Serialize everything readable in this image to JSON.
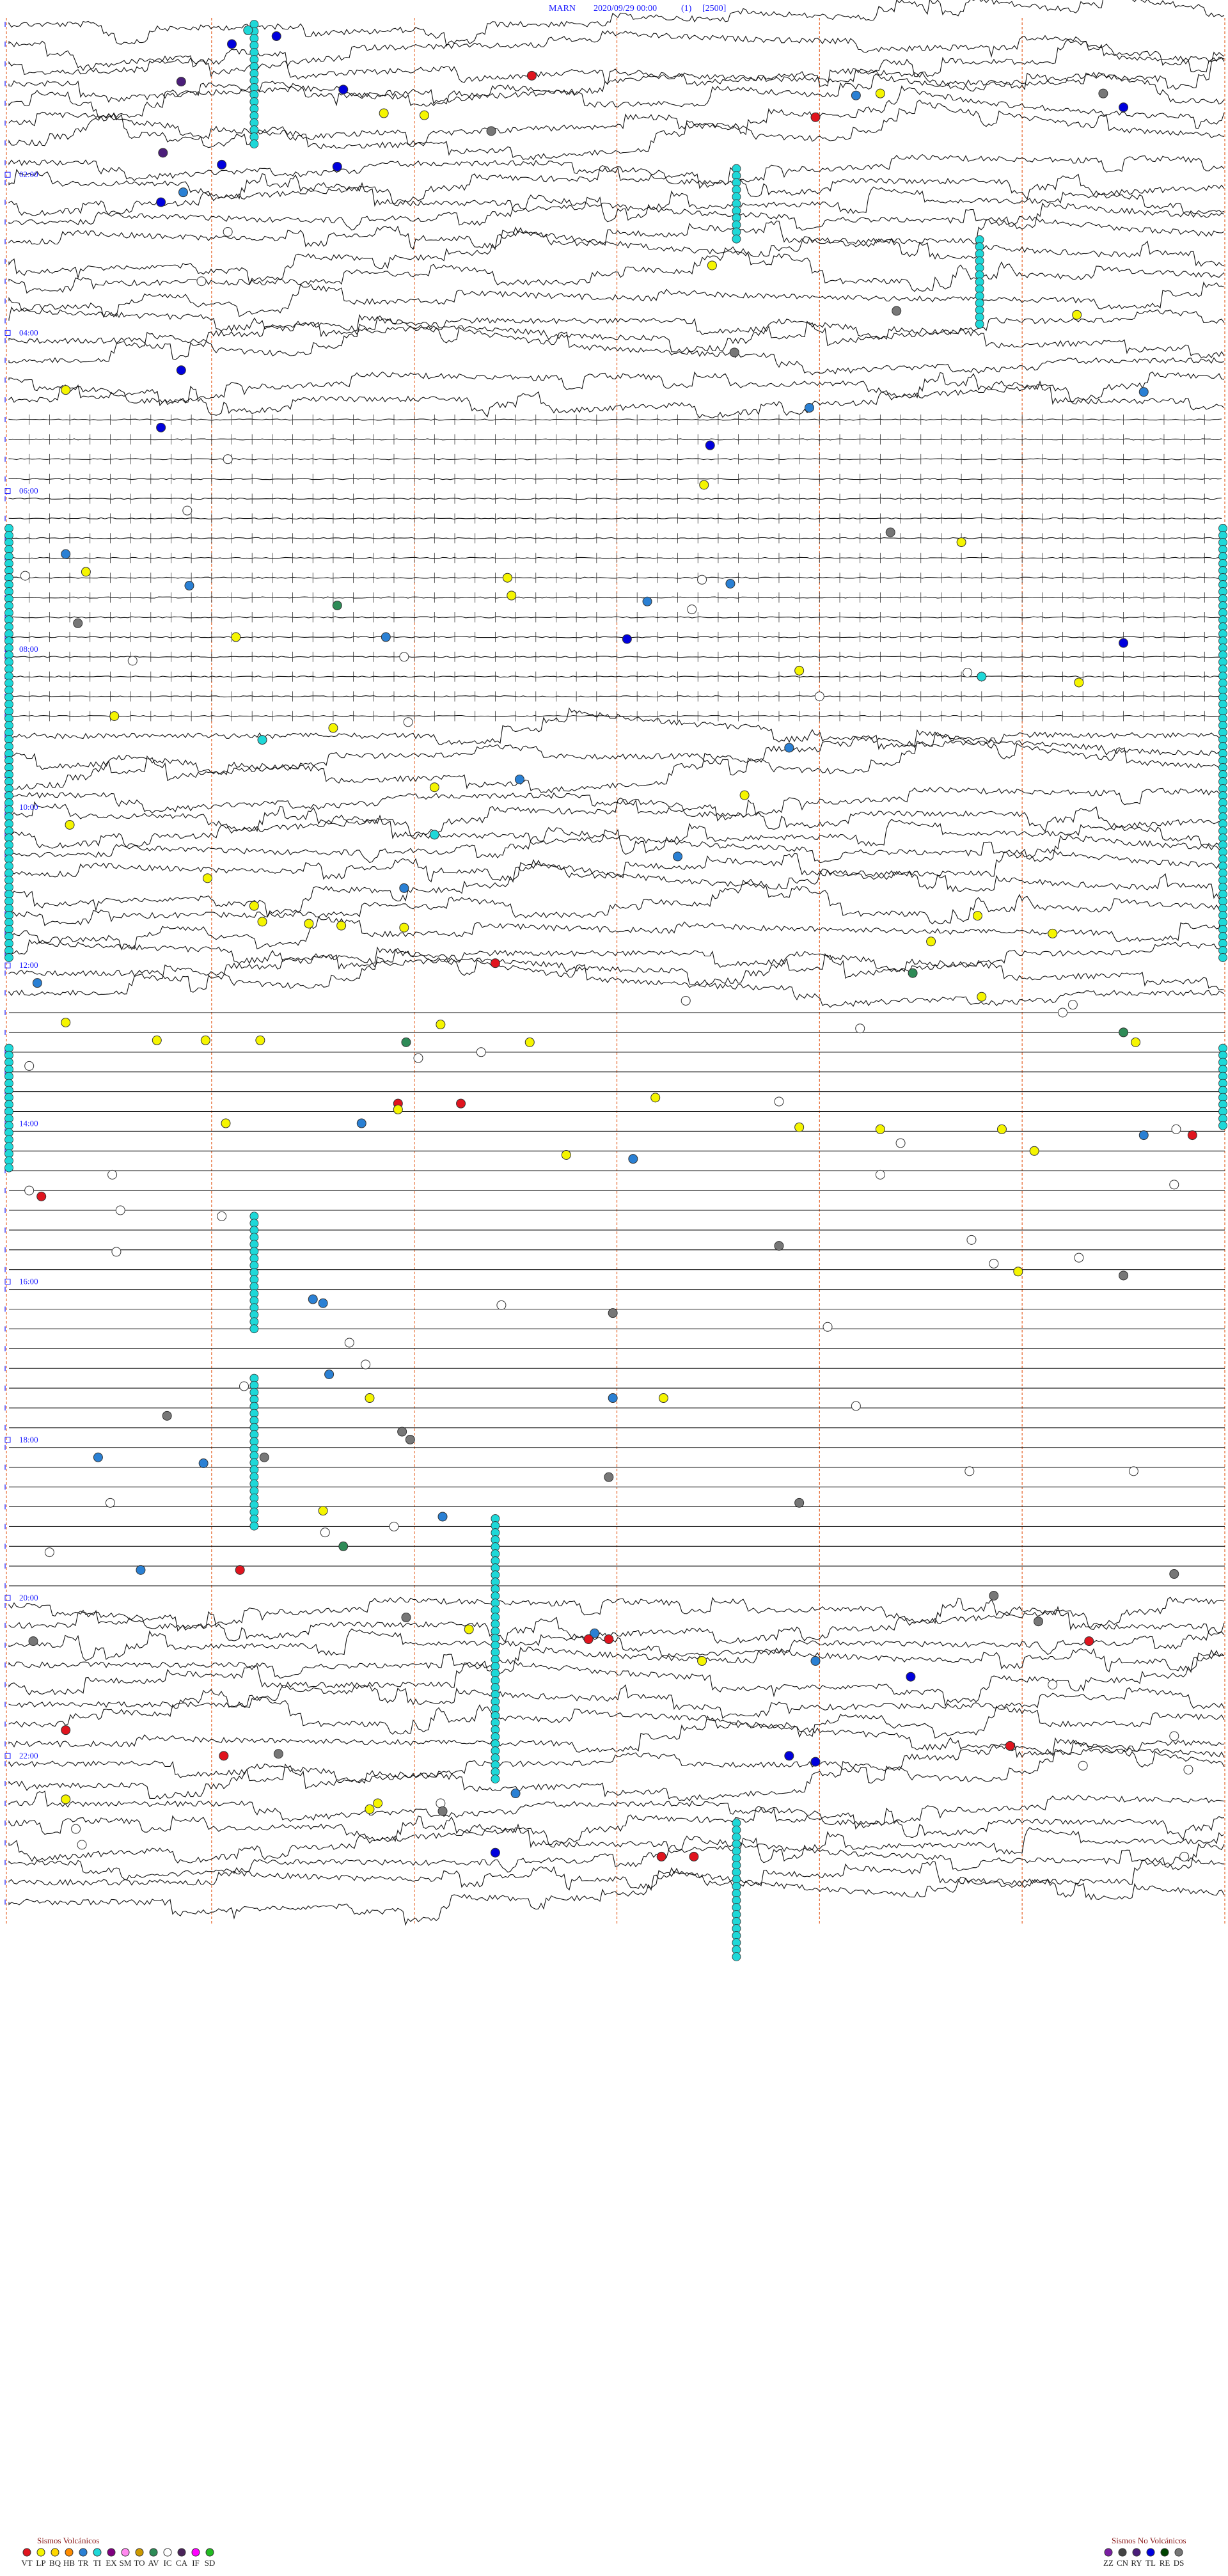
{
  "header": {
    "station": "MARN",
    "datetime": "2020/09/29 00:00",
    "channel": "(1)",
    "scale": "[2500]"
  },
  "chart_data": {
    "type": "helicorder",
    "hour_labels": [
      "02:00",
      "04:00",
      "06:00",
      "08:00",
      "10:00",
      "12:00",
      "14:00",
      "16:00",
      "18:00",
      "20:00",
      "22:00"
    ],
    "traces_per_hour": 4,
    "total_traces": 96,
    "minute_marks": [
      10,
      20,
      30,
      40,
      50
    ],
    "amplitude_profile": [
      {
        "from_trace": 0,
        "to_trace": 20,
        "level": "high"
      },
      {
        "from_trace": 20,
        "to_trace": 36,
        "level": "low"
      },
      {
        "from_trace": 36,
        "to_trace": 50,
        "level": "high"
      },
      {
        "from_trace": 50,
        "to_trace": 80,
        "level": "flat"
      },
      {
        "from_trace": 80,
        "to_trace": 96,
        "level": "high"
      }
    ],
    "events": [
      {
        "trace": 0.3,
        "minute": 11.8,
        "type": "TI"
      },
      {
        "trace": 0.6,
        "minute": 13.2,
        "type": "TL"
      },
      {
        "trace": 1.0,
        "minute": 11.0,
        "type": "TL"
      },
      {
        "trace": 2.6,
        "minute": 25.8,
        "type": "VT"
      },
      {
        "trace": 2.9,
        "minute": 8.5,
        "type": "RY"
      },
      {
        "trace": 3.3,
        "minute": 16.5,
        "type": "TL"
      },
      {
        "trace": 3.5,
        "minute": 43.0,
        "type": "LP"
      },
      {
        "trace": 3.5,
        "minute": 54.0,
        "type": "DS"
      },
      {
        "trace": 3.6,
        "minute": 41.8,
        "type": "TR"
      },
      {
        "trace": 4.2,
        "minute": 55.0,
        "type": "TL"
      },
      {
        "trace": 4.5,
        "minute": 18.5,
        "type": "LP"
      },
      {
        "trace": 4.6,
        "minute": 20.5,
        "type": "LP"
      },
      {
        "trace": 4.7,
        "minute": 39.8,
        "type": "VT"
      },
      {
        "trace": 5.4,
        "minute": 23.8,
        "type": "DS"
      },
      {
        "trace": 6.5,
        "minute": 7.6,
        "type": "RY"
      },
      {
        "trace": 7.1,
        "minute": 10.5,
        "type": "TL"
      },
      {
        "trace": 7.2,
        "minute": 16.2,
        "type": "TL"
      },
      {
        "trace": 8.5,
        "minute": 8.6,
        "type": "TR"
      },
      {
        "trace": 9.0,
        "minute": 7.5,
        "type": "TL"
      },
      {
        "trace": 10.5,
        "minute": 10.8,
        "type": "IC"
      },
      {
        "trace": 12.2,
        "minute": 34.7,
        "type": "LP"
      },
      {
        "trace": 13.0,
        "minute": 9.5,
        "type": "IC"
      },
      {
        "trace": 14.5,
        "minute": 43.8,
        "type": "DS"
      },
      {
        "trace": 14.7,
        "minute": 52.7,
        "type": "LP"
      },
      {
        "trace": 16.6,
        "minute": 35.8,
        "type": "DS"
      },
      {
        "trace": 17.5,
        "minute": 8.5,
        "type": "TL"
      },
      {
        "trace": 18.6,
        "minute": 56.0,
        "type": "TR"
      },
      {
        "trace": 18.5,
        "minute": 2.8,
        "type": "LP"
      },
      {
        "trace": 19.4,
        "minute": 39.5,
        "type": "TR"
      },
      {
        "trace": 20.4,
        "minute": 7.5,
        "type": "TL"
      },
      {
        "trace": 21.3,
        "minute": 34.6,
        "type": "TL"
      },
      {
        "trace": 22.0,
        "minute": 10.8,
        "type": "IC"
      },
      {
        "trace": 23.3,
        "minute": 34.3,
        "type": "LP"
      },
      {
        "trace": 24.6,
        "minute": 8.8,
        "type": "IC"
      },
      {
        "trace": 25.7,
        "minute": 43.5,
        "type": "DS"
      },
      {
        "trace": 26.2,
        "minute": 47.0,
        "type": "LP"
      },
      {
        "trace": 26.8,
        "minute": 2.8,
        "type": "TR"
      },
      {
        "trace": 27.7,
        "minute": 3.8,
        "type": "LP"
      },
      {
        "trace": 27.9,
        "minute": 0.8,
        "type": "IC"
      },
      {
        "trace": 28.0,
        "minute": 24.6,
        "type": "LP"
      },
      {
        "trace": 28.1,
        "minute": 34.2,
        "type": "IC"
      },
      {
        "trace": 28.3,
        "minute": 35.6,
        "type": "TR"
      },
      {
        "trace": 28.4,
        "minute": 8.9,
        "type": "TR"
      },
      {
        "trace": 28.9,
        "minute": 24.8,
        "type": "LP"
      },
      {
        "trace": 29.2,
        "minute": 31.5,
        "type": "TR"
      },
      {
        "trace": 29.4,
        "minute": 16.2,
        "type": "AV"
      },
      {
        "trace": 29.6,
        "minute": 33.7,
        "type": "IC"
      },
      {
        "trace": 30.3,
        "minute": 3.4,
        "type": "DS"
      },
      {
        "trace": 31.0,
        "minute": 11.2,
        "type": "LP"
      },
      {
        "trace": 31.0,
        "minute": 18.6,
        "type": "TR"
      },
      {
        "trace": 31.1,
        "minute": 30.5,
        "type": "TL"
      },
      {
        "trace": 31.3,
        "minute": 55.0,
        "type": "TL"
      },
      {
        "trace": 32.0,
        "minute": 19.5,
        "type": "IC"
      },
      {
        "trace": 32.2,
        "minute": 6.1,
        "type": "IC"
      },
      {
        "trace": 32.7,
        "minute": 39.0,
        "type": "LP"
      },
      {
        "trace": 32.8,
        "minute": 47.3,
        "type": "IC"
      },
      {
        "trace": 33.0,
        "minute": 48.0,
        "type": "TI"
      },
      {
        "trace": 33.3,
        "minute": 52.8,
        "type": "LP"
      },
      {
        "trace": 34.0,
        "minute": 40.0,
        "type": "IC"
      },
      {
        "trace": 35.0,
        "minute": 5.2,
        "type": "LP"
      },
      {
        "trace": 35.3,
        "minute": 19.7,
        "type": "IC"
      },
      {
        "trace": 35.6,
        "minute": 16.0,
        "type": "LP"
      },
      {
        "trace": 36.2,
        "minute": 12.5,
        "type": "TI"
      },
      {
        "trace": 36.6,
        "minute": 38.5,
        "type": "TR"
      },
      {
        "trace": 38.2,
        "minute": 25.2,
        "type": "TR"
      },
      {
        "trace": 38.6,
        "minute": 21.0,
        "type": "LP"
      },
      {
        "trace": 39.0,
        "minute": 36.3,
        "type": "LP"
      },
      {
        "trace": 40.5,
        "minute": 3.0,
        "type": "LP"
      },
      {
        "trace": 41.0,
        "minute": 21.0,
        "type": "TI"
      },
      {
        "trace": 42.1,
        "minute": 33.0,
        "type": "TR"
      },
      {
        "trace": 43.2,
        "minute": 9.8,
        "type": "LP"
      },
      {
        "trace": 43.7,
        "minute": 19.5,
        "type": "TR"
      },
      {
        "trace": 44.6,
        "minute": 12.1,
        "type": "LP"
      },
      {
        "trace": 45.1,
        "minute": 47.8,
        "type": "LP"
      },
      {
        "trace": 45.4,
        "minute": 12.5,
        "type": "LP"
      },
      {
        "trace": 45.5,
        "minute": 14.8,
        "type": "LP"
      },
      {
        "trace": 45.6,
        "minute": 16.4,
        "type": "LP"
      },
      {
        "trace": 45.7,
        "minute": 19.5,
        "type": "LP"
      },
      {
        "trace": 46.0,
        "minute": 51.5,
        "type": "LP"
      },
      {
        "trace": 46.4,
        "minute": 45.5,
        "type": "LP"
      },
      {
        "trace": 47.5,
        "minute": 24.0,
        "type": "VT"
      },
      {
        "trace": 48.0,
        "minute": 44.6,
        "type": "AV"
      },
      {
        "trace": 48.5,
        "minute": 1.4,
        "type": "TR"
      },
      {
        "trace": 49.2,
        "minute": 48.0,
        "type": "LP"
      },
      {
        "trace": 49.4,
        "minute": 33.4,
        "type": "IC"
      },
      {
        "trace": 49.6,
        "minute": 52.5,
        "type": "IC"
      },
      {
        "trace": 50.0,
        "minute": 52.0,
        "type": "IC"
      },
      {
        "trace": 50.5,
        "minute": 2.8,
        "type": "LP"
      },
      {
        "trace": 50.6,
        "minute": 21.3,
        "type": "LP"
      },
      {
        "trace": 50.8,
        "minute": 42.0,
        "type": "IC"
      },
      {
        "trace": 51.0,
        "minute": 55.0,
        "type": "AV"
      },
      {
        "trace": 51.4,
        "minute": 7.3,
        "type": "LP"
      },
      {
        "trace": 51.4,
        "minute": 9.7,
        "type": "LP"
      },
      {
        "trace": 51.4,
        "minute": 12.4,
        "type": "LP"
      },
      {
        "trace": 51.5,
        "minute": 25.7,
        "type": "LP"
      },
      {
        "trace": 51.5,
        "minute": 19.6,
        "type": "AV"
      },
      {
        "trace": 51.5,
        "minute": 55.6,
        "type": "LP"
      },
      {
        "trace": 52.0,
        "minute": 23.3,
        "type": "IC"
      },
      {
        "trace": 52.3,
        "minute": 20.2,
        "type": "IC"
      },
      {
        "trace": 52.7,
        "minute": 1.0,
        "type": "IC"
      },
      {
        "trace": 54.6,
        "minute": 19.2,
        "type": "VT"
      },
      {
        "trace": 54.6,
        "minute": 22.3,
        "type": "VT"
      },
      {
        "trace": 54.3,
        "minute": 31.9,
        "type": "LP"
      },
      {
        "trace": 54.5,
        "minute": 38.0,
        "type": "IC"
      },
      {
        "trace": 54.9,
        "minute": 19.2,
        "type": "LP"
      },
      {
        "trace": 55.6,
        "minute": 10.7,
        "type": "LP"
      },
      {
        "trace": 55.6,
        "minute": 17.4,
        "type": "TR"
      },
      {
        "trace": 55.8,
        "minute": 39.0,
        "type": "LP"
      },
      {
        "trace": 55.9,
        "minute": 43.0,
        "type": "LP"
      },
      {
        "trace": 55.9,
        "minute": 49.0,
        "type": "LP"
      },
      {
        "trace": 55.9,
        "minute": 57.6,
        "type": "IC"
      },
      {
        "trace": 56.2,
        "minute": 56.0,
        "type": "TR"
      },
      {
        "trace": 56.2,
        "minute": 58.4,
        "type": "VT"
      },
      {
        "trace": 56.6,
        "minute": 44.0,
        "type": "IC"
      },
      {
        "trace": 57.0,
        "minute": 50.6,
        "type": "LP"
      },
      {
        "trace": 57.2,
        "minute": 27.5,
        "type": "LP"
      },
      {
        "trace": 57.4,
        "minute": 30.8,
        "type": "TR"
      },
      {
        "trace": 58.2,
        "minute": 5.1,
        "type": "IC"
      },
      {
        "trace": 58.2,
        "minute": 43.0,
        "type": "IC"
      },
      {
        "trace": 58.7,
        "minute": 57.5,
        "type": "IC"
      },
      {
        "trace": 59.0,
        "minute": 1.0,
        "type": "IC"
      },
      {
        "trace": 59.3,
        "minute": 1.6,
        "type": "VT"
      },
      {
        "trace": 60.0,
        "minute": 5.5,
        "type": "IC"
      },
      {
        "trace": 60.3,
        "minute": 10.5,
        "type": "IC"
      },
      {
        "trace": 61.5,
        "minute": 47.5,
        "type": "IC"
      },
      {
        "trace": 61.8,
        "minute": 38.0,
        "type": "DS"
      },
      {
        "trace": 62.1,
        "minute": 5.3,
        "type": "IC"
      },
      {
        "trace": 62.4,
        "minute": 52.8,
        "type": "IC"
      },
      {
        "trace": 62.7,
        "minute": 48.6,
        "type": "IC"
      },
      {
        "trace": 63.1,
        "minute": 49.8,
        "type": "LP"
      },
      {
        "trace": 63.3,
        "minute": 55.0,
        "type": "DS"
      },
      {
        "trace": 64.5,
        "minute": 15.0,
        "type": "TR"
      },
      {
        "trace": 64.7,
        "minute": 15.5,
        "type": "TR"
      },
      {
        "trace": 64.8,
        "minute": 24.3,
        "type": "IC"
      },
      {
        "trace": 65.2,
        "minute": 29.8,
        "type": "DS"
      },
      {
        "trace": 65.9,
        "minute": 40.4,
        "type": "IC"
      },
      {
        "trace": 66.7,
        "minute": 16.8,
        "type": "IC"
      },
      {
        "trace": 67.8,
        "minute": 17.6,
        "type": "IC"
      },
      {
        "trace": 68.3,
        "minute": 15.8,
        "type": "TR"
      },
      {
        "trace": 68.9,
        "minute": 11.6,
        "type": "IC"
      },
      {
        "trace": 69.5,
        "minute": 17.8,
        "type": "LP"
      },
      {
        "trace": 69.5,
        "minute": 29.8,
        "type": "TR"
      },
      {
        "trace": 69.5,
        "minute": 32.3,
        "type": "LP"
      },
      {
        "trace": 69.9,
        "minute": 41.8,
        "type": "IC"
      },
      {
        "trace": 70.4,
        "minute": 7.8,
        "type": "DS"
      },
      {
        "trace": 71.2,
        "minute": 19.4,
        "type": "DS"
      },
      {
        "trace": 71.6,
        "minute": 19.8,
        "type": "DS"
      },
      {
        "trace": 72.5,
        "minute": 4.4,
        "type": "TR"
      },
      {
        "trace": 72.5,
        "minute": 12.6,
        "type": "DS"
      },
      {
        "trace": 72.8,
        "minute": 9.6,
        "type": "TR"
      },
      {
        "trace": 73.2,
        "minute": 47.4,
        "type": "IC"
      },
      {
        "trace": 73.2,
        "minute": 55.5,
        "type": "IC"
      },
      {
        "trace": 73.5,
        "minute": 29.6,
        "type": "DS"
      },
      {
        "trace": 74.8,
        "minute": 5.0,
        "type": "IC"
      },
      {
        "trace": 74.8,
        "minute": 39.0,
        "type": "DS"
      },
      {
        "trace": 75.2,
        "minute": 15.5,
        "type": "LP"
      },
      {
        "trace": 75.5,
        "minute": 21.4,
        "type": "TR"
      },
      {
        "trace": 76.0,
        "minute": 19.0,
        "type": "IC"
      },
      {
        "trace": 76.3,
        "minute": 15.6,
        "type": "IC"
      },
      {
        "trace": 77.0,
        "minute": 16.5,
        "type": "AV"
      },
      {
        "trace": 77.3,
        "minute": 2.0,
        "type": "IC"
      },
      {
        "trace": 78.2,
        "minute": 6.5,
        "type": "TR"
      },
      {
        "trace": 78.2,
        "minute": 11.4,
        "type": "VT"
      },
      {
        "trace": 78.4,
        "minute": 57.5,
        "type": "DS"
      },
      {
        "trace": 79.5,
        "minute": 48.6,
        "type": "DS"
      },
      {
        "trace": 80.6,
        "minute": 19.6,
        "type": "DS"
      },
      {
        "trace": 80.8,
        "minute": 50.8,
        "type": "DS"
      },
      {
        "trace": 81.2,
        "minute": 22.7,
        "type": "LP"
      },
      {
        "trace": 81.4,
        "minute": 28.9,
        "type": "TR"
      },
      {
        "trace": 81.7,
        "minute": 28.6,
        "type": "VT"
      },
      {
        "trace": 81.7,
        "minute": 29.6,
        "type": "VT"
      },
      {
        "trace": 81.8,
        "minute": 53.3,
        "type": "VT"
      },
      {
        "trace": 81.8,
        "minute": 1.2,
        "type": "DS"
      },
      {
        "trace": 82.8,
        "minute": 34.2,
        "type": "LP"
      },
      {
        "trace": 82.8,
        "minute": 39.8,
        "type": "TR"
      },
      {
        "trace": 83.6,
        "minute": 44.5,
        "type": "TL"
      },
      {
        "trace": 84.0,
        "minute": 51.5,
        "type": "IC"
      },
      {
        "trace": 86.3,
        "minute": 2.8,
        "type": "VT"
      },
      {
        "trace": 86.6,
        "minute": 57.5,
        "type": "IC"
      },
      {
        "trace": 87.1,
        "minute": 49.4,
        "type": "VT"
      },
      {
        "trace": 87.5,
        "minute": 13.3,
        "type": "DS"
      },
      {
        "trace": 87.6,
        "minute": 10.6,
        "type": "VT"
      },
      {
        "trace": 87.6,
        "minute": 38.5,
        "type": "TL"
      },
      {
        "trace": 87.9,
        "minute": 39.8,
        "type": "TL"
      },
      {
        "trace": 88.1,
        "minute": 53.0,
        "type": "IC"
      },
      {
        "trace": 88.3,
        "minute": 58.2,
        "type": "IC"
      },
      {
        "trace": 89.5,
        "minute": 25.0,
        "type": "TR"
      },
      {
        "trace": 89.8,
        "minute": 2.8,
        "type": "LP"
      },
      {
        "trace": 90.0,
        "minute": 18.2,
        "type": "LP"
      },
      {
        "trace": 90.0,
        "minute": 21.3,
        "type": "IC"
      },
      {
        "trace": 90.4,
        "minute": 21.4,
        "type": "DS"
      },
      {
        "trace": 90.3,
        "minute": 17.8,
        "type": "LP"
      },
      {
        "trace": 91.3,
        "minute": 3.3,
        "type": "IC"
      },
      {
        "trace": 92.1,
        "minute": 3.6,
        "type": "IC"
      },
      {
        "trace": 92.5,
        "minute": 24.0,
        "type": "TL"
      },
      {
        "trace": 92.7,
        "minute": 32.2,
        "type": "VT"
      },
      {
        "trace": 92.7,
        "minute": 33.8,
        "type": "VT"
      },
      {
        "trace": 92.7,
        "minute": 58.0,
        "type": "IC"
      }
    ],
    "tremor_columns": [
      {
        "minute": 12.1,
        "from_trace": 0.0,
        "to_trace": 6.2
      },
      {
        "minute": 35.9,
        "from_trace": 7.3,
        "to_trace": 10.9
      },
      {
        "minute": 47.9,
        "from_trace": 10.9,
        "to_trace": 15.5
      },
      {
        "minute": 0.0,
        "from_trace": 25.5,
        "to_trace": 47.5
      },
      {
        "minute": 60.0,
        "from_trace": 25.5,
        "to_trace": 47.5
      },
      {
        "minute": 0.0,
        "from_trace": 51.8,
        "to_trace": 58.0
      },
      {
        "minute": 60.0,
        "from_trace": 51.8,
        "to_trace": 56.0
      },
      {
        "minute": 12.1,
        "from_trace": 60.3,
        "to_trace": 66.0
      },
      {
        "minute": 12.1,
        "from_trace": 68.5,
        "to_trace": 76.0
      },
      {
        "minute": 24.0,
        "from_trace": 75.6,
        "to_trace": 89.0
      },
      {
        "minute": 35.9,
        "from_trace": 91.0,
        "to_trace": 98.0
      }
    ],
    "colors": {
      "VT": "#e0141e",
      "LP": "#f5f500",
      "BQ": "#ffd700",
      "HB": "#ff8c00",
      "TR": "#2a80d4",
      "TI": "#1ed8d8",
      "EX": "#800080",
      "SM": "#ff88ee",
      "TO": "#cc9900",
      "AV": "#2e8b57",
      "IC": "#ffffff",
      "CA": "#4a235a",
      "IF": "#ff00ff",
      "SD": "#22bb22",
      "ZZ": "#7a1fa2",
      "CN": "#444444",
      "RY": "#4b1e7a",
      "TL": "#0000dd",
      "RE": "#004400",
      "DS": "#777777"
    }
  },
  "legend": {
    "volcanic": {
      "title": "Sismos Volcánicos",
      "codes": [
        "VT",
        "LP",
        "BQ",
        "HB",
        "TR",
        "TI",
        "EX",
        "SM",
        "TO",
        "AV",
        "IC",
        "CA",
        "IF",
        "SD"
      ]
    },
    "non_volcanic": {
      "title": "Sismos No Volcánicos",
      "codes": [
        "ZZ",
        "CN",
        "RY",
        "TL",
        "RE",
        "DS"
      ]
    }
  }
}
